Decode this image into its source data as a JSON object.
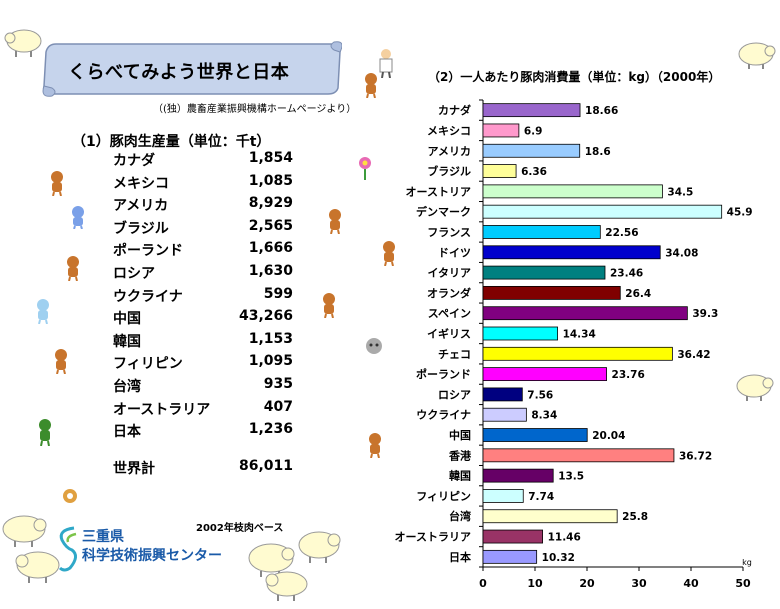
{
  "page": {
    "title": "くらべてみよう世界と日本",
    "source": "（(独）農畜産業振興機構ホームページより）",
    "basis_note": "2002年枝肉ベース",
    "org_name_line1": "三重県",
    "org_name_line2": "科学技術振興センター"
  },
  "production": {
    "title": "（1）豚肉生産量（単位：千t）",
    "rows": [
      {
        "name": "カナダ",
        "value": "1,854"
      },
      {
        "name": "メキシコ",
        "value": "1,085"
      },
      {
        "name": "アメリカ",
        "value": "8,929"
      },
      {
        "name": "ブラジル",
        "value": "2,565"
      },
      {
        "name": "ポーランド",
        "value": "1,666"
      },
      {
        "name": "ロシア",
        "value": "1,630"
      },
      {
        "name": "ウクライナ",
        "value": "599"
      },
      {
        "name": "中国",
        "value": "43,266"
      },
      {
        "name": "韓国",
        "value": "1,153"
      },
      {
        "name": "フィリピン",
        "value": "1,095"
      },
      {
        "name": "台湾",
        "value": "935"
      },
      {
        "name": "オーストラリア",
        "value": "407"
      },
      {
        "name": "日本",
        "value": "1,236"
      }
    ],
    "total_label": "世界計",
    "total_value": "86,011"
  },
  "chart_data": {
    "type": "bar",
    "orientation": "horizontal",
    "title": "（2）一人あたり豚肉消費量（単位：kg）（2000年）",
    "xlabel": "kg",
    "xlim": [
      0,
      50
    ],
    "xticks": [
      0,
      10,
      20,
      30,
      40,
      50
    ],
    "grid": false,
    "categories": [
      "カナダ",
      "メキシコ",
      "アメリカ",
      "ブラジル",
      "オーストリア",
      "デンマーク",
      "フランス",
      "ドイツ",
      "イタリア",
      "オランダ",
      "スペイン",
      "イギリス",
      "チェコ",
      "ポーランド",
      "ロシア",
      "ウクライナ",
      "中国",
      "香港",
      "韓国",
      "フィリピン",
      "台湾",
      "オーストラリア",
      "日本"
    ],
    "values": [
      18.66,
      6.9,
      18.6,
      6.36,
      34.5,
      45.9,
      22.56,
      34.08,
      23.46,
      26.4,
      39.3,
      14.34,
      36.42,
      23.76,
      7.56,
      8.34,
      20.04,
      36.72,
      13.5,
      7.74,
      25.8,
      11.46,
      10.32
    ],
    "labels": [
      "18.66",
      "6.9",
      "18.6",
      "6.36",
      "34.5",
      "45.9",
      "22.56",
      "34.08",
      "23.46",
      "26.4",
      "39.3",
      "14.34",
      "36.42",
      "23.76",
      "7.56",
      "8.34",
      "20.04",
      "36.72",
      "13.5",
      "7.74",
      "25.8",
      "11.46",
      "10.32"
    ],
    "colors": [
      "#9966cc",
      "#ff99cc",
      "#99ccff",
      "#ffff99",
      "#ccffcc",
      "#ccffff",
      "#00ccff",
      "#0000cc",
      "#008080",
      "#800000",
      "#800080",
      "#00ffff",
      "#ffff00",
      "#ff00ff",
      "#000080",
      "#ccccff",
      "#0066cc",
      "#ff8080",
      "#660066",
      "#ccffff",
      "#ffffcc",
      "#993366",
      "#9999ff"
    ]
  }
}
